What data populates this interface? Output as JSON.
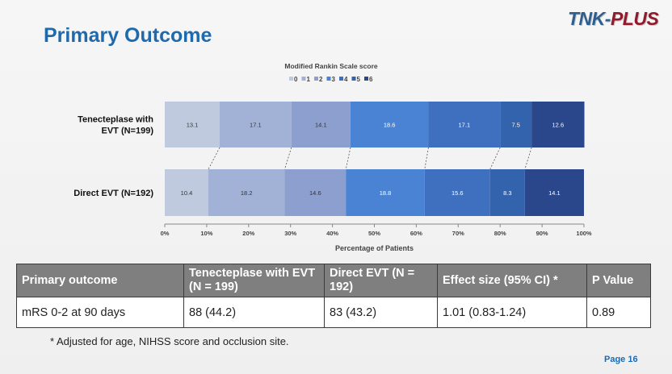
{
  "slide": {
    "title": "Primary Outcome",
    "logo_prefix": "TNK-",
    "logo_suffix": "PLUS",
    "page": "Page 16"
  },
  "chart_data": {
    "type": "bar",
    "orientation": "horizontal",
    "stacked": true,
    "title": "Modified Rankin Scale score",
    "legend": [
      "0",
      "1",
      "2",
      "3",
      "4",
      "5",
      "6"
    ],
    "legend_position": "top",
    "colors": [
      "#c0cadf",
      "#a2b2d6",
      "#8c9fce",
      "#4a83d4",
      "#3f70c0",
      "#3463ad",
      "#29478a"
    ],
    "categories": [
      "Tenecteplase with EVT (N=199)",
      "Direct EVT (N=192)"
    ],
    "category_lines": [
      [
        "Tenecteplase with",
        "EVT (N=199)"
      ],
      [
        "Direct EVT (N=192)"
      ]
    ],
    "values": [
      [
        13.1,
        17.1,
        14.1,
        18.6,
        17.1,
        7.5,
        12.6
      ],
      [
        10.4,
        18.2,
        14.6,
        18.8,
        15.6,
        8.3,
        14.1
      ]
    ],
    "value_labels": [
      [
        "13.1",
        "17.1",
        "14.1",
        "18.6",
        "17.1",
        "7.5",
        "12.6"
      ],
      [
        "10.4",
        "18.2",
        "14.6",
        "18.8",
        "15.6",
        "8.3",
        "14.1"
      ]
    ],
    "xlabel": "Percentage of Patients",
    "xlim": [
      0,
      100
    ],
    "xticks": [
      0,
      10,
      20,
      30,
      40,
      50,
      60,
      70,
      80,
      90,
      100
    ],
    "xtick_labels": [
      "0%",
      "10%",
      "20%",
      "30%",
      "40%",
      "50%",
      "60%",
      "70%",
      "80%",
      "90%",
      "100%"
    ],
    "connector_lines": true
  },
  "table": {
    "headers": [
      "Primary outcome",
      "Tenecteplase with EVT (N = 199)",
      "Direct EVT (N = 192)",
      "Effect size (95% CI) *",
      "P Value"
    ],
    "row": [
      "mRS 0-2 at 90 days",
      "88 (44.2)",
      "83 (43.2)",
      "1.01 (0.83-1.24)",
      "0.89"
    ]
  },
  "footnote": "* Adjusted for age, NIHSS score and occlusion site."
}
